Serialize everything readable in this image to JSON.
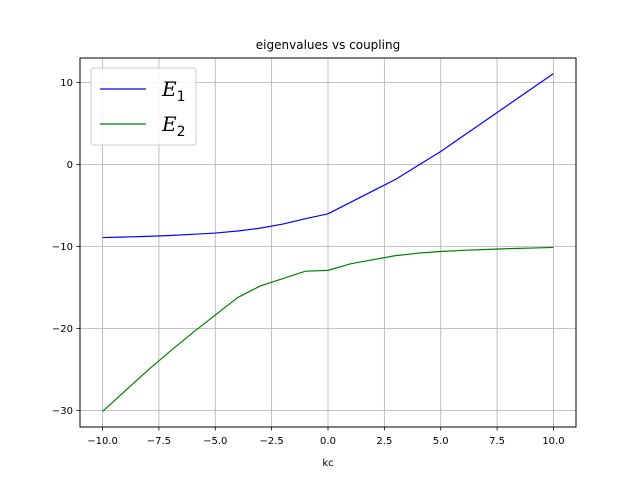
{
  "chart_data": {
    "type": "line",
    "title": "eigenvalues vs coupling",
    "xlabel": "kc",
    "ylabel": "",
    "xlim": [
      -11,
      11
    ],
    "ylim": [
      -32,
      13
    ],
    "xticks": [
      -10,
      -7.5,
      -5,
      -2.5,
      0,
      2.5,
      5,
      7.5,
      10
    ],
    "xtick_labels": [
      "−10.0",
      "−7.5",
      "−5.0",
      "−2.5",
      "0.0",
      "2.5",
      "5.0",
      "7.5",
      "10.0"
    ],
    "yticks": [
      -30,
      -20,
      -10,
      0,
      10
    ],
    "ytick_labels": [
      "−30",
      "−20",
      "−10",
      "0",
      "10"
    ],
    "grid": true,
    "legend_position": "top-left",
    "x": [
      -10,
      -9,
      -8,
      -7,
      -6,
      -5,
      -4,
      -3,
      -2,
      -1,
      0,
      1,
      2,
      3,
      4,
      5,
      6,
      7,
      8,
      9,
      10
    ],
    "series": [
      {
        "name": "E_1",
        "legend_main": "E",
        "legend_sub": "1",
        "color": "#0000ff",
        "values": [
          -8.9,
          -8.83,
          -8.75,
          -8.65,
          -8.5,
          -8.35,
          -8.1,
          -7.75,
          -7.25,
          -6.6,
          -6.0,
          -4.6,
          -3.2,
          -1.8,
          -0.1,
          1.6,
          3.5,
          5.4,
          7.3,
          9.2,
          11.1
        ]
      },
      {
        "name": "E_2",
        "legend_main": "E",
        "legend_sub": "2",
        "color": "#008000",
        "values": [
          -30.1,
          -27.6,
          -25.1,
          -22.75,
          -20.5,
          -18.35,
          -16.2,
          -14.8,
          -13.9,
          -13.0,
          -12.9,
          -12.1,
          -11.6,
          -11.1,
          -10.8,
          -10.6,
          -10.45,
          -10.35,
          -10.25,
          -10.18,
          -10.1
        ]
      }
    ]
  }
}
